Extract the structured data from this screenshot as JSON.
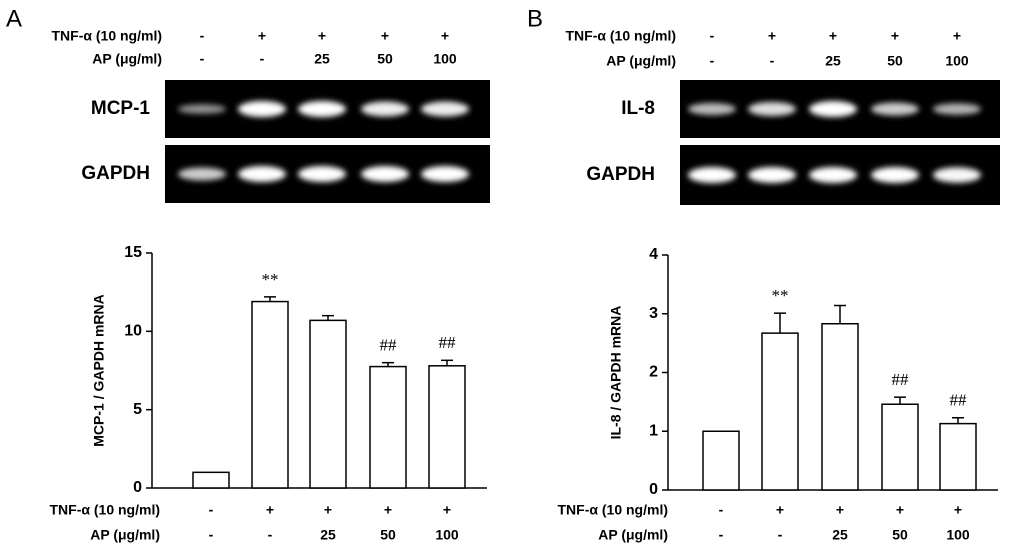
{
  "chart_data": [
    {
      "type": "bar",
      "panel": "A",
      "gel_labels": [
        "MCP-1",
        "GAPDH"
      ],
      "treatments": [
        {
          "name": "TNF-α (10 ng/ml)",
          "levels": [
            "-",
            "+",
            "+",
            "+",
            "+"
          ]
        },
        {
          "name": "AP (μg/ml)",
          "levels": [
            "-",
            "-",
            "25",
            "50",
            "100"
          ]
        }
      ],
      "ylabel": "MCP-1 / GAPDH mRNA",
      "values": [
        1,
        11.9,
        10.7,
        7.75,
        7.8
      ],
      "errors": [
        null,
        0.3,
        0.3,
        0.25,
        0.35
      ],
      "annotations": [
        null,
        "**",
        null,
        "##",
        "##"
      ],
      "color": "#ffffff",
      "ylim": [
        0,
        15
      ],
      "yticks": [
        0,
        5,
        10,
        15
      ]
    },
    {
      "type": "bar",
      "panel": "B",
      "gel_labels": [
        "IL-8",
        "GAPDH"
      ],
      "treatments": [
        {
          "name": "TNF-α (10 ng/ml)",
          "levels": [
            "-",
            "+",
            "+",
            "+",
            "+"
          ]
        },
        {
          "name": "AP (μg/ml)",
          "levels": [
            "-",
            "-",
            "25",
            "50",
            "100"
          ]
        }
      ],
      "ylabel": "IL-8 / GAPDH mRNA",
      "values": [
        1,
        2.67,
        2.83,
        1.46,
        1.13
      ],
      "errors": [
        null,
        0.34,
        0.31,
        0.12,
        0.1
      ],
      "annotations": [
        null,
        "**",
        null,
        "##",
        "##"
      ],
      "color": "#ffffff",
      "ylim": [
        0,
        4
      ],
      "yticks": [
        0,
        1,
        2,
        3,
        4
      ]
    }
  ]
}
